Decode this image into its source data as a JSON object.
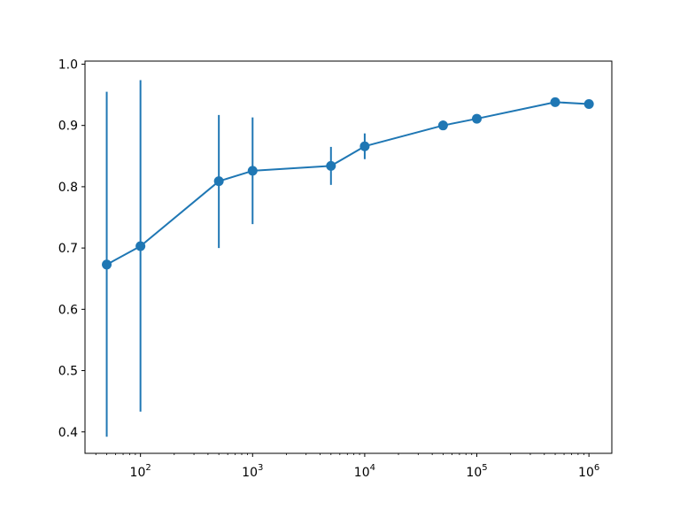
{
  "chart_data": {
    "type": "line",
    "title": "",
    "xlabel": "",
    "ylabel": "",
    "xscale": "log",
    "xlim": [
      32,
      1600000
    ],
    "ylim": [
      0.365,
      1.005
    ],
    "grid": false,
    "x_ticks": [
      {
        "base": "10",
        "exp": "2",
        "value": 100
      },
      {
        "base": "10",
        "exp": "3",
        "value": 1000
      },
      {
        "base": "10",
        "exp": "4",
        "value": 10000
      },
      {
        "base": "10",
        "exp": "5",
        "value": 100000
      },
      {
        "base": "10",
        "exp": "6",
        "value": 1000000
      }
    ],
    "y_ticks": [
      {
        "label": "0.4",
        "value": 0.4
      },
      {
        "label": "0.5",
        "value": 0.5
      },
      {
        "label": "0.6",
        "value": 0.6
      },
      {
        "label": "0.7",
        "value": 0.7
      },
      {
        "label": "0.8",
        "value": 0.8
      },
      {
        "label": "0.9",
        "value": 0.9
      },
      {
        "label": "1.0",
        "value": 1.0
      }
    ],
    "series": [
      {
        "color": "#1f77b4",
        "x": [
          50,
          100,
          500,
          1000,
          5000,
          10000,
          50000,
          100000,
          500000,
          1000000
        ],
        "y": [
          0.673,
          0.703,
          0.809,
          0.826,
          0.834,
          0.866,
          0.9,
          0.911,
          0.938,
          0.935
        ],
        "err_low": [
          0.392,
          0.433,
          0.7,
          0.739,
          0.803,
          0.845,
          0.893,
          0.908,
          0.935,
          0.932
        ],
        "err_high": [
          0.955,
          0.974,
          0.917,
          0.913,
          0.865,
          0.887,
          0.908,
          0.915,
          0.941,
          0.938
        ]
      }
    ]
  }
}
